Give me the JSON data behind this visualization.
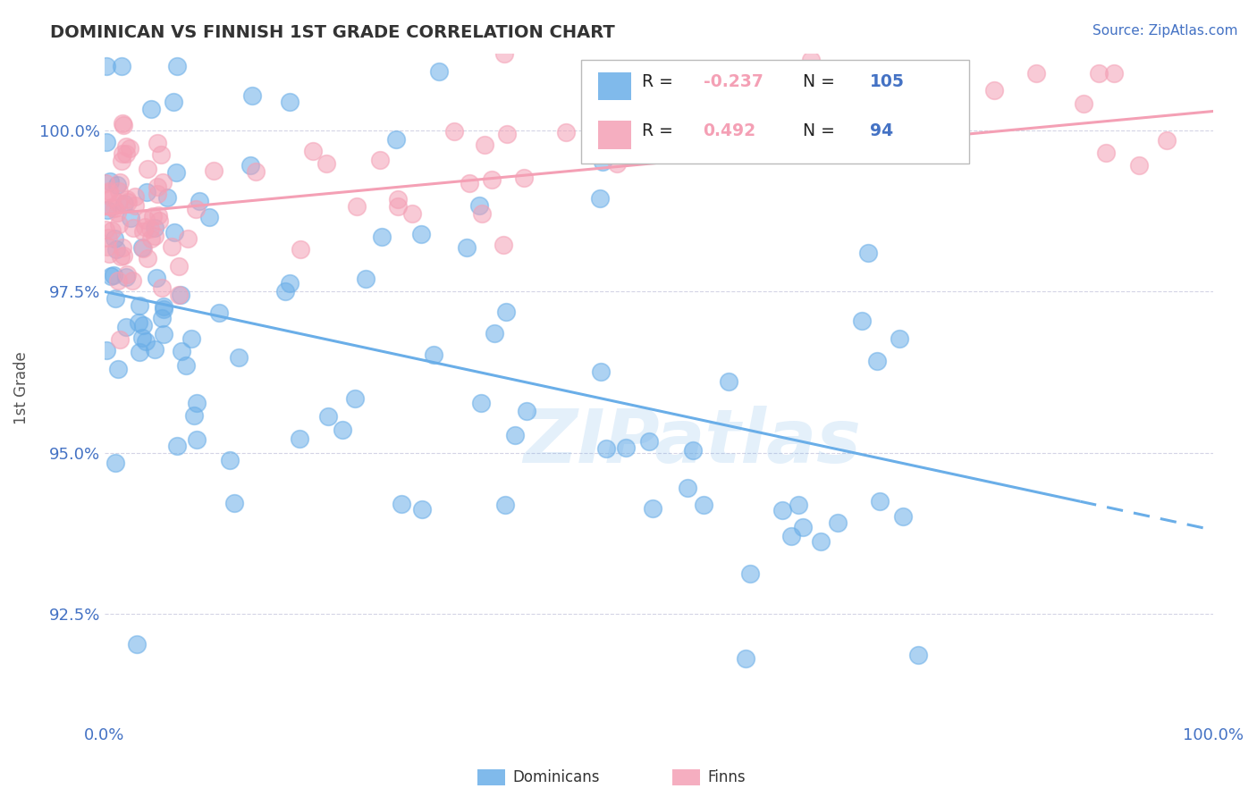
{
  "title": "DOMINICAN VS FINNISH 1ST GRADE CORRELATION CHART",
  "source_text": "Source: ZipAtlas.com",
  "ylabel": "1st Grade",
  "xlim": [
    0,
    100
  ],
  "ylim": [
    90.8,
    101.2
  ],
  "yticks": [
    92.5,
    95.0,
    97.5,
    100.0
  ],
  "ytick_labels": [
    "92.5%",
    "95.0%",
    "97.5%",
    "100.0%"
  ],
  "xtick_labels": [
    "0.0%",
    "100.0%"
  ],
  "xticks": [
    0,
    100
  ],
  "blue_color": "#6aaee8",
  "pink_color": "#f4a0b5",
  "title_color": "#333333",
  "axis_label_color": "#4472C4",
  "legend_R_blue": "-0.237",
  "legend_N_blue": "105",
  "legend_R_pink": "0.492",
  "legend_N_pink": "94",
  "blue_trend_start_y": 97.5,
  "blue_trend_end_y": 93.8,
  "blue_trend_solid_end_x": 88,
  "pink_trend_start_y": 98.7,
  "pink_trend_end_y": 100.3,
  "watermark_text": "ZIPatlas",
  "watermark_color": "#6aaee8",
  "watermark_alpha": 0.18
}
